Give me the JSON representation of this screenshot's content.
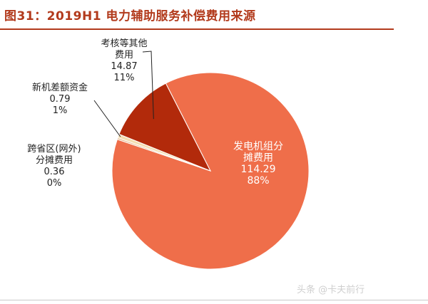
{
  "header": {
    "title": "图31：2019H1 电力辅助服务补偿费用来源"
  },
  "watermark": "头条 @卡夫前行",
  "colors": {
    "accent": "#b23a1c"
  },
  "chart_data": {
    "type": "pie",
    "title": "图31：2019H1 电力辅助服务补偿费用来源",
    "slices": [
      {
        "label": [
          "发电机组分",
          "摊费用"
        ],
        "value": 114.29,
        "percent": "88%",
        "color": "#ef6e4a"
      },
      {
        "label": [
          "跨省区(网外)",
          "分摊费用"
        ],
        "value": 0.36,
        "percent": "0%",
        "color": "#e8b585"
      },
      {
        "label": [
          "新机差额资金"
        ],
        "value": 0.79,
        "percent": "1%",
        "color": "#f4ddb0"
      },
      {
        "label": [
          "考核等其他",
          "费用"
        ],
        "value": 14.87,
        "percent": "11%",
        "color": "#b22a0b"
      }
    ]
  }
}
